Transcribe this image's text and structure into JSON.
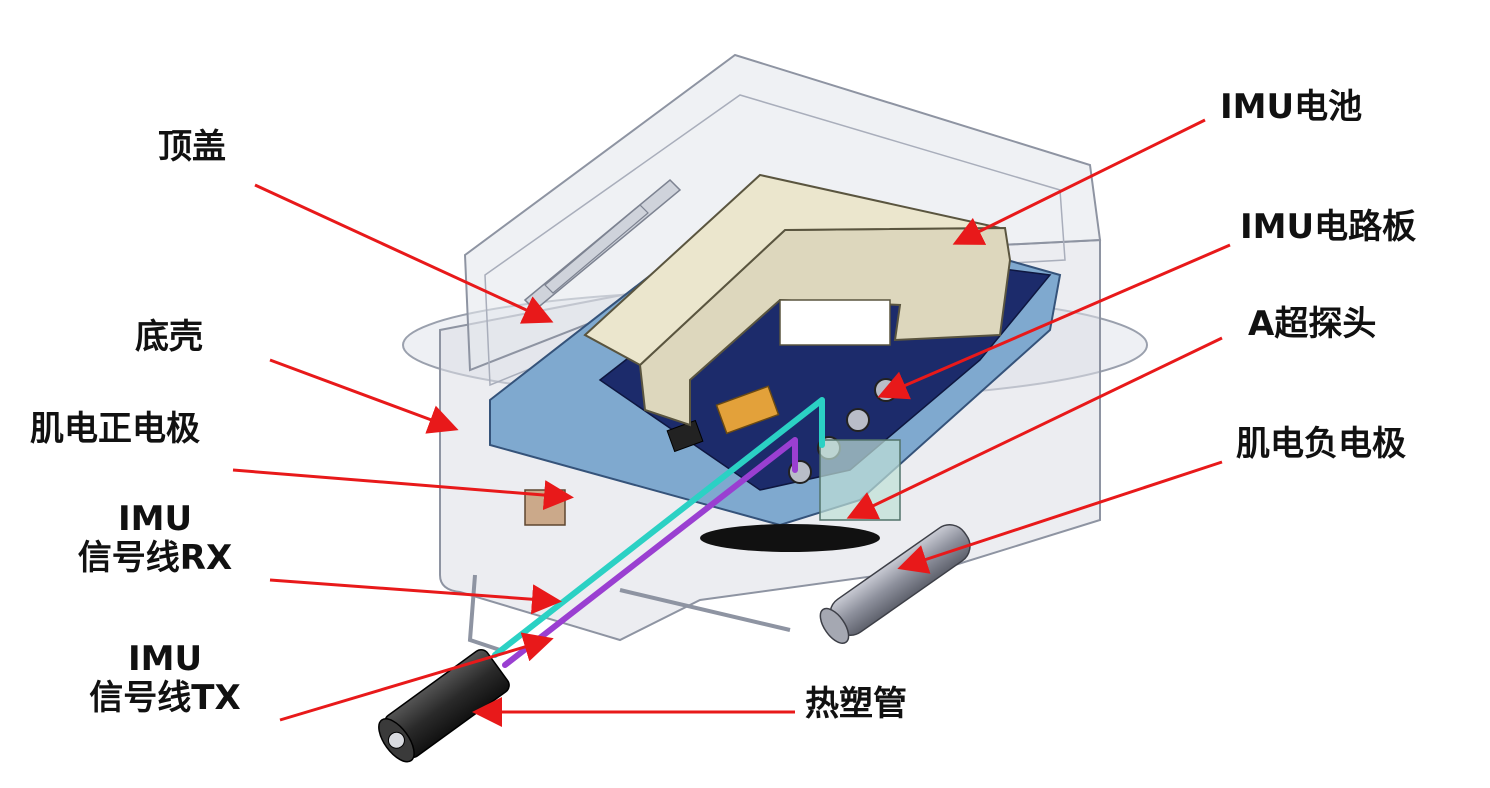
{
  "labels": {
    "top_cover": "顶盖",
    "bottom_shell": "底壳",
    "emg_positive": "肌电正电极",
    "imu_rx_line1": "IMU",
    "imu_rx_line2": "信号线RX",
    "imu_tx_line1": "IMU",
    "imu_tx_line2": "信号线TX",
    "imu_battery": "IMU电池",
    "imu_board": "IMU电路板",
    "ultrasound_probe": "A超探头",
    "emg_negative": "肌电负电极",
    "heat_shrink_tube": "热塑管"
  },
  "colors": {
    "arrow": "#e8191a",
    "shell": "#dcdfe6",
    "battery": "#ddd7bd",
    "board": "#1c2b6b",
    "cyan_wire": "#2bd1c4",
    "purple_wire": "#9a3fd1",
    "probe_body": "#8fb8d8"
  }
}
